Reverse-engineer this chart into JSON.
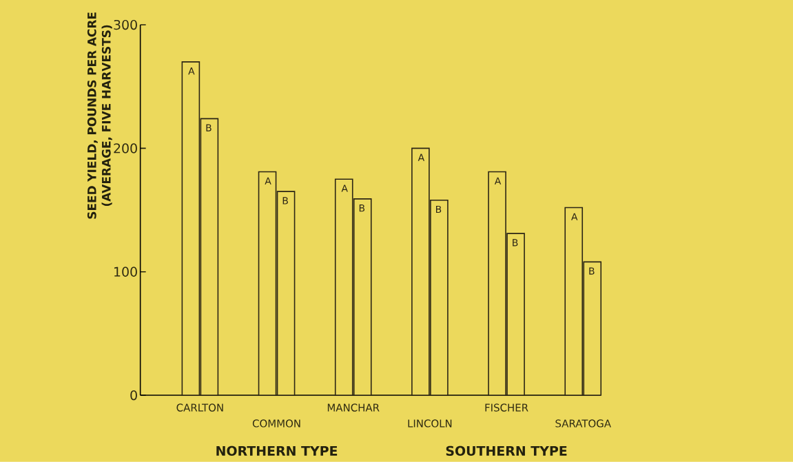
{
  "chart_data": {
    "type": "bar",
    "ylabel": "SEED YIELD, POUNDS PER ACRE (AVERAGE, FIVE HARVESTS)",
    "categories": [
      "CARLTON",
      "COMMON",
      "MANCHAR",
      "LINCOLN",
      "FISCHER",
      "SARATOGA"
    ],
    "series": [
      {
        "name": "A",
        "color": "#2b2515",
        "values": [
          270,
          181,
          175,
          200,
          181,
          152
        ]
      },
      {
        "name": "B",
        "color": "#2b2515",
        "values": [
          224,
          165,
          159,
          158,
          131,
          108
        ]
      }
    ],
    "ylim": [
      0,
      300
    ],
    "yticks": [
      0,
      100,
      200,
      300
    ],
    "annotations": [
      "NORTHERN TYPE",
      "SOUTHERN TYPE"
    ]
  }
}
